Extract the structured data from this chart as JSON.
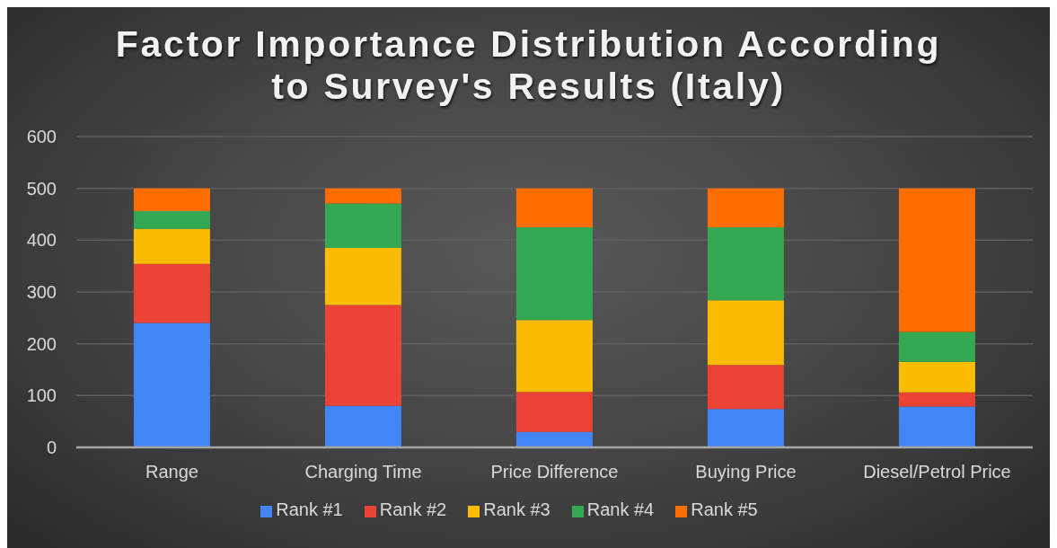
{
  "chart_data": {
    "type": "bar",
    "stacked": true,
    "title": "Factor Importance Distribution According to Survey's Results (Italy)",
    "categories": [
      "Range",
      "Charging Time",
      "Price Difference",
      "Buying Price",
      "Diesel/Petrol Price"
    ],
    "series": [
      {
        "name": "Rank #1",
        "color": "#4285f4",
        "values": [
          240,
          80,
          30,
          74,
          79
        ]
      },
      {
        "name": "Rank #2",
        "color": "#ea4335",
        "values": [
          114,
          195,
          77,
          85,
          27
        ]
      },
      {
        "name": "Rank #3",
        "color": "#fbbc04",
        "values": [
          68,
          110,
          139,
          125,
          59
        ]
      },
      {
        "name": "Rank #4",
        "color": "#34a853",
        "values": [
          34,
          86,
          179,
          141,
          58
        ]
      },
      {
        "name": "Rank #5",
        "color": "#ff6d01",
        "values": [
          44,
          29,
          75,
          75,
          277
        ]
      }
    ],
    "ylim": [
      0,
      600
    ],
    "yticks": [
      0,
      100,
      200,
      300,
      400,
      500,
      600
    ],
    "grid": "y",
    "legend": "bottom"
  }
}
